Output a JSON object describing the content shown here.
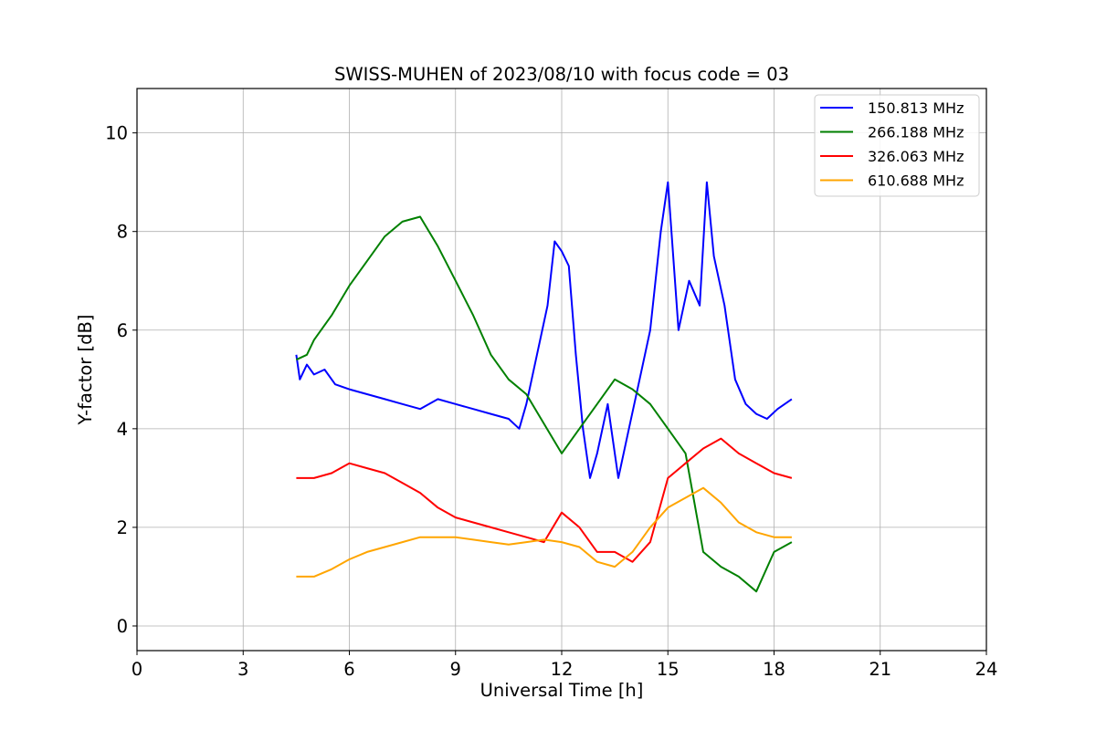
{
  "chart_data": {
    "type": "line",
    "title": "SWISS-MUHEN of 2023/08/10 with focus code = 03",
    "xlabel": "Universal Time [h]",
    "ylabel": "Y-factor [dB]",
    "xlim": [
      0,
      24
    ],
    "ylim": [
      -0.5,
      10.9
    ],
    "x_ticks": [
      0,
      3,
      6,
      9,
      12,
      15,
      18,
      21,
      24
    ],
    "y_ticks": [
      0,
      2,
      4,
      6,
      8,
      10
    ],
    "grid": true,
    "legend_position": "top-right",
    "series": [
      {
        "name": "150.813 MHz",
        "color": "#0000ff",
        "x": [
          4.5,
          4.6,
          4.8,
          5.0,
          5.3,
          5.6,
          6.0,
          6.5,
          7.0,
          7.5,
          8.0,
          8.5,
          9.0,
          9.5,
          10.0,
          10.5,
          10.8,
          11.0,
          11.3,
          11.6,
          11.8,
          12.0,
          12.2,
          12.4,
          12.6,
          12.8,
          13.0,
          13.3,
          13.6,
          13.9,
          14.2,
          14.5,
          14.8,
          15.0,
          15.3,
          15.6,
          15.9,
          16.1,
          16.3,
          16.6,
          16.9,
          17.2,
          17.5,
          17.8,
          18.1,
          18.5
        ],
        "y": [
          5.5,
          5.0,
          5.3,
          5.1,
          5.2,
          4.9,
          4.8,
          4.7,
          4.6,
          4.5,
          4.4,
          4.6,
          4.5,
          4.4,
          4.3,
          4.2,
          4.0,
          4.5,
          5.5,
          6.5,
          7.8,
          7.6,
          7.3,
          5.5,
          4.0,
          3.0,
          3.5,
          4.5,
          3.0,
          4.0,
          5.0,
          6.0,
          8.0,
          9.0,
          6.0,
          7.0,
          6.5,
          9.0,
          7.5,
          6.5,
          5.0,
          4.5,
          4.3,
          4.2,
          4.4,
          4.6
        ]
      },
      {
        "name": "266.188 MHz",
        "color": "#008000",
        "x": [
          4.5,
          4.8,
          5.0,
          5.5,
          6.0,
          6.5,
          7.0,
          7.5,
          8.0,
          8.5,
          9.0,
          9.5,
          10.0,
          10.5,
          11.0,
          11.5,
          12.0,
          12.5,
          13.0,
          13.5,
          14.0,
          14.5,
          15.0,
          15.5,
          16.0,
          16.5,
          17.0,
          17.5,
          18.0,
          18.5
        ],
        "y": [
          5.4,
          5.5,
          5.8,
          6.3,
          6.9,
          7.4,
          7.9,
          8.2,
          8.3,
          7.7,
          7.0,
          6.3,
          5.5,
          5.0,
          4.7,
          4.1,
          3.5,
          4.0,
          4.5,
          5.0,
          4.8,
          4.5,
          4.0,
          3.5,
          1.5,
          1.2,
          1.0,
          0.7,
          1.5,
          1.7
        ]
      },
      {
        "name": "326.063 MHz",
        "color": "#ff0000",
        "x": [
          4.5,
          5.0,
          5.5,
          6.0,
          6.5,
          7.0,
          7.5,
          8.0,
          8.5,
          9.0,
          9.5,
          10.0,
          10.5,
          11.0,
          11.5,
          12.0,
          12.5,
          13.0,
          13.5,
          14.0,
          14.5,
          15.0,
          15.5,
          16.0,
          16.5,
          17.0,
          17.5,
          18.0,
          18.5
        ],
        "y": [
          3.0,
          3.0,
          3.1,
          3.3,
          3.2,
          3.1,
          2.9,
          2.7,
          2.4,
          2.2,
          2.1,
          2.0,
          1.9,
          1.8,
          1.7,
          2.3,
          2.0,
          1.5,
          1.5,
          1.3,
          1.7,
          3.0,
          3.3,
          3.6,
          3.8,
          3.5,
          3.3,
          3.1,
          3.0
        ]
      },
      {
        "name": "610.688 MHz",
        "color": "#ffa500",
        "x": [
          4.5,
          5.0,
          5.5,
          6.0,
          6.5,
          7.0,
          7.5,
          8.0,
          8.5,
          9.0,
          9.5,
          10.0,
          10.5,
          11.0,
          11.5,
          12.0,
          12.5,
          13.0,
          13.5,
          14.0,
          14.5,
          15.0,
          15.5,
          16.0,
          16.5,
          17.0,
          17.5,
          18.0,
          18.5
        ],
        "y": [
          1.0,
          1.0,
          1.15,
          1.35,
          1.5,
          1.6,
          1.7,
          1.8,
          1.8,
          1.8,
          1.75,
          1.7,
          1.65,
          1.7,
          1.75,
          1.7,
          1.6,
          1.3,
          1.2,
          1.5,
          2.0,
          2.4,
          2.6,
          2.8,
          2.5,
          2.1,
          1.9,
          1.8,
          1.8
        ]
      }
    ]
  }
}
